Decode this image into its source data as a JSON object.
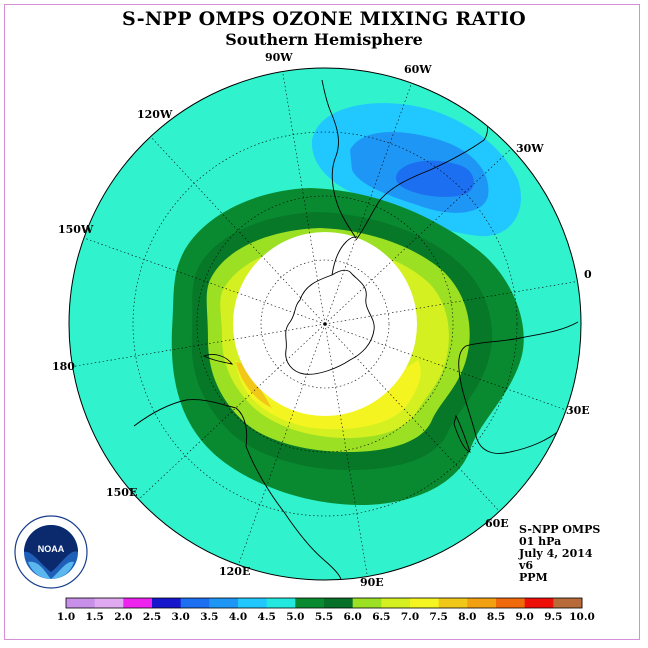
{
  "title": "S-NPP OMPS OZONE MIXING RATIO",
  "subtitle": "Southern Hemisphere",
  "longitude_labels": {
    "lon_90w": "90W",
    "lon_60w": "60W",
    "lon_30w": "30W",
    "lon_0": "0",
    "lon_30e": "30E",
    "lon_60e": "60E",
    "lon_90e": "90E",
    "lon_120e": "120E",
    "lon_150e": "150E",
    "lon_180": "180",
    "lon_150w": "150W",
    "lon_120w": "120W"
  },
  "info": {
    "instrument": "S-NPP OMPS",
    "pressure": "01 hPa",
    "date": "July 4, 2014",
    "version": "v6",
    "units": "PPM"
  },
  "logo": {
    "text": "NOAA",
    "ring_text": "NATIONAL OCEANIC AND ATMOSPHERIC ADMINISTRATION · U.S. DEPARTMENT OF COMMERCE"
  },
  "colorbar": {
    "ticks": [
      "1.0",
      "1.5",
      "2.0",
      "2.5",
      "3.0",
      "3.5",
      "4.0",
      "4.5",
      "5.0",
      "5.5",
      "6.0",
      "6.5",
      "7.0",
      "7.5",
      "8.0",
      "8.5",
      "9.0",
      "9.5",
      "10.0"
    ],
    "colors": [
      "#c78fe8",
      "#e0a8f0",
      "#ee22ee",
      "#1616cc",
      "#1c6ff0",
      "#1e96f5",
      "#20c8ff",
      "#22e8e0",
      "#0a8a30",
      "#066f28",
      "#9be022",
      "#d4f020",
      "#f4f420",
      "#f2c818",
      "#f0a010",
      "#f06a0c",
      "#ee1008",
      "#b86a38"
    ]
  },
  "map_colors": {
    "background_field": "#30f2cc",
    "dark_green": "#0a8a30",
    "mid_green": "#077828",
    "light_green": "#9be022",
    "yellow_green": "#d4f020",
    "yellow": "#f4f420",
    "orange": "#f2c818",
    "blue_light": "#20c8ff",
    "blue_mid": "#1e96f5",
    "blue_dark": "#1c6ff0",
    "no_data": "#ffffff"
  }
}
